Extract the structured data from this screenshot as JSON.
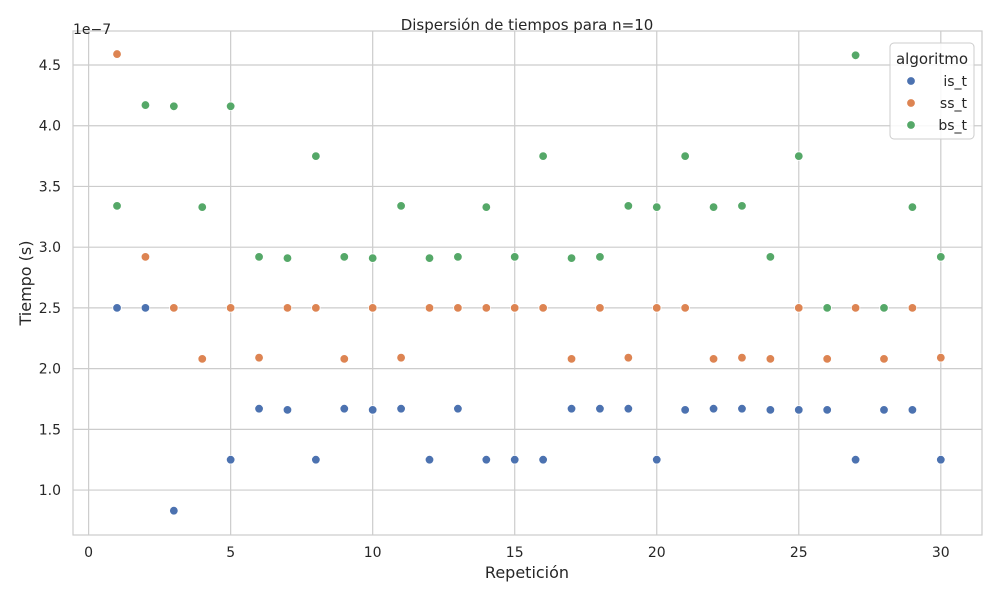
{
  "chart_data": {
    "type": "scatter",
    "title": "Dispersión de tiempos para n=10",
    "xlabel": "Repetición",
    "ylabel": "Tiempo (s)",
    "offset_text": "1e−7",
    "xlim": [
      -0.55,
      31.45
    ],
    "ylim": [
      0.63,
      4.78
    ],
    "x_ticks": [
      0,
      5,
      10,
      15,
      20,
      25,
      30
    ],
    "y_ticks": [
      1.0,
      1.5,
      2.0,
      2.5,
      3.0,
      3.5,
      4.0,
      4.5
    ],
    "y_tick_labels": [
      "1.0",
      "1.5",
      "2.0",
      "2.5",
      "3.0",
      "3.5",
      "4.0",
      "4.5"
    ],
    "grid": true,
    "legend": {
      "title": "algoritmo",
      "position": "top-right"
    },
    "x": [
      1,
      2,
      3,
      4,
      5,
      6,
      7,
      8,
      9,
      10,
      11,
      12,
      13,
      14,
      15,
      16,
      17,
      18,
      19,
      20,
      21,
      22,
      23,
      24,
      25,
      26,
      27,
      28,
      29,
      30
    ],
    "series": [
      {
        "name": "is_t",
        "color": "#4c72b0",
        "values": [
          2.5,
          2.5,
          0.83,
          null,
          1.25,
          1.67,
          1.66,
          1.25,
          1.67,
          1.66,
          1.67,
          1.25,
          1.67,
          1.25,
          1.25,
          1.25,
          1.67,
          1.67,
          1.67,
          1.25,
          1.66,
          1.67,
          1.67,
          1.66,
          1.66,
          1.66,
          1.25,
          1.66,
          1.66,
          1.25
        ]
      },
      {
        "name": "ss_t",
        "color": "#dd8452",
        "values": [
          4.59,
          2.92,
          2.5,
          2.08,
          2.5,
          2.09,
          2.5,
          2.5,
          2.08,
          2.5,
          2.09,
          2.5,
          2.5,
          2.5,
          2.5,
          2.5,
          2.08,
          2.5,
          2.09,
          2.5,
          2.5,
          2.08,
          2.09,
          2.08,
          2.5,
          2.08,
          2.5,
          2.08,
          2.5,
          2.09
        ]
      },
      {
        "name": "bs_t",
        "color": "#55a868",
        "values": [
          3.34,
          4.17,
          4.16,
          3.33,
          4.16,
          2.92,
          2.91,
          3.75,
          2.92,
          2.91,
          3.34,
          2.91,
          2.92,
          3.33,
          2.92,
          3.75,
          2.91,
          2.92,
          3.34,
          3.33,
          3.75,
          3.33,
          3.34,
          2.92,
          3.75,
          2.5,
          4.58,
          2.5,
          3.33,
          2.92
        ]
      }
    ]
  }
}
